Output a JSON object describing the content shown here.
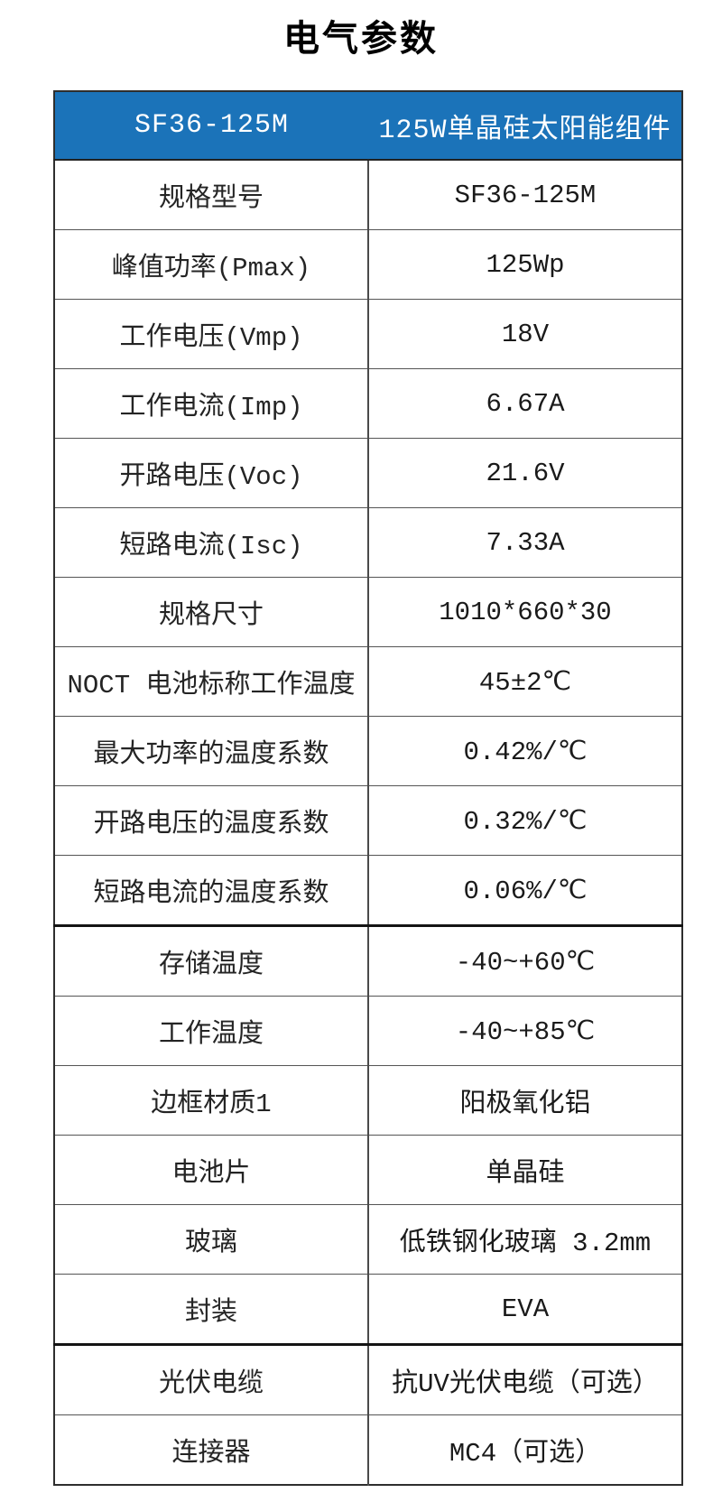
{
  "page": {
    "title": "电气参数"
  },
  "colors": {
    "header_bg": "#1b73b9",
    "header_text": "#ffffff",
    "grid_line": "#555555",
    "section_line": "#141414",
    "outer_border": "#2e2e2e"
  },
  "table": {
    "header": {
      "model": "SF36-125M",
      "product": "125W单晶硅太阳能组件"
    },
    "rows": [
      {
        "label": "规格型号",
        "value": "SF36-125M"
      },
      {
        "label": "峰值功率(Pmax)",
        "value": "125Wp"
      },
      {
        "label": "工作电压(Vmp)",
        "value": "18V"
      },
      {
        "label": "工作电流(Imp)",
        "value": "6.67A"
      },
      {
        "label": "开路电压(Voc)",
        "value": "21.6V"
      },
      {
        "label": "短路电流(Isc)",
        "value": "7.33A"
      },
      {
        "label": "规格尺寸",
        "value": "1010*660*30"
      },
      {
        "label": "NOCT 电池标称工作温度",
        "value": "45±2℃"
      },
      {
        "label": "最大功率的温度系数",
        "value": "0.42%/℃"
      },
      {
        "label": "开路电压的温度系数",
        "value": "0.32%/℃"
      },
      {
        "label": "短路电流的温度系数",
        "value": "0.06%/℃"
      },
      {
        "label": "存储温度",
        "value": "-40~+60℃",
        "section_start": true
      },
      {
        "label": "工作温度",
        "value": "-40~+85℃"
      },
      {
        "label": "边框材质1",
        "value": "阳极氧化铝"
      },
      {
        "label": "电池片",
        "value": "单晶硅"
      },
      {
        "label": "玻璃",
        "value": "低铁钢化玻璃 3.2mm"
      },
      {
        "label": "封装",
        "value": "EVA"
      },
      {
        "label": "光伏电缆",
        "value": "抗UV光伏电缆（可选）",
        "section_start": true
      },
      {
        "label": "连接器",
        "value": "MC4（可选）"
      }
    ]
  }
}
